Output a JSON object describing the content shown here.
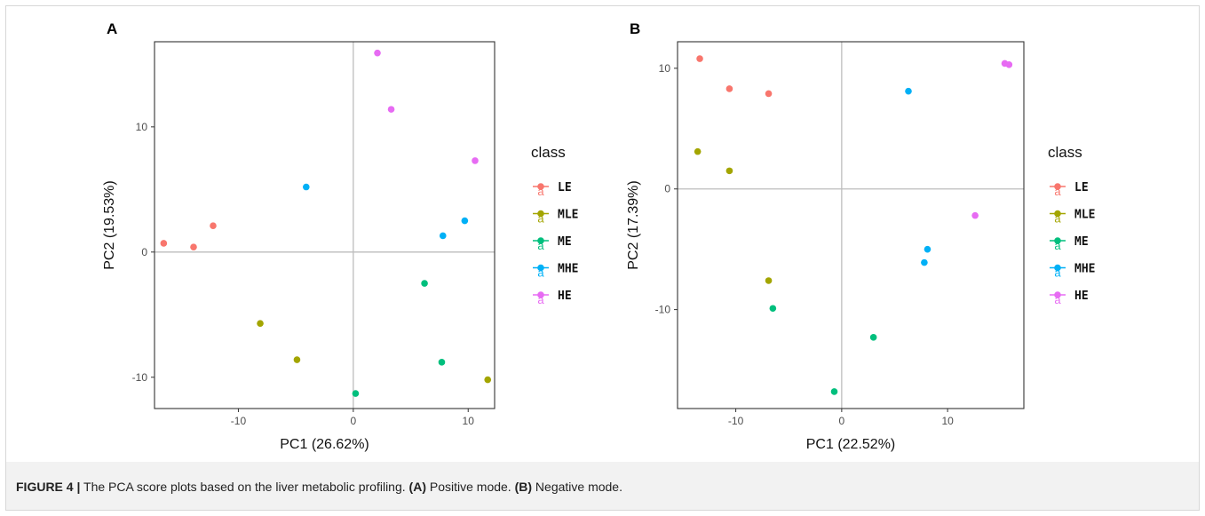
{
  "caption": {
    "label": "FIGURE 4 |",
    "text_before": " The PCA score plots based on the liver metabolic profiling. ",
    "a_label": "(A)",
    "a_text": " Positive mode. ",
    "b_label": "(B)",
    "b_text": " Negative mode."
  },
  "colors": {
    "LE": "#F8766D",
    "MLE": "#A3A500",
    "ME": "#00BF7D",
    "MHE": "#00B0F6",
    "HE": "#E76BF3",
    "zero_line": "#bdbdbd",
    "panel_border": "#333333"
  },
  "chart_data": [
    {
      "type": "scatter",
      "panel_label": "A",
      "xlabel": "PC1 (26.62%)",
      "ylabel": "PC2 (19.53%)",
      "xlim": [
        -17.3,
        12.3
      ],
      "ylim": [
        -12.5,
        16.8
      ],
      "xticks": [
        -10,
        0,
        10
      ],
      "yticks": [
        -10,
        0,
        10
      ],
      "grid": false,
      "zero_lines": true,
      "legend_title": "class",
      "legend_position": "right",
      "series": [
        {
          "name": "LE",
          "points": [
            [
              -16.5,
              0.7
            ],
            [
              -13.9,
              0.4
            ],
            [
              -12.2,
              2.1
            ]
          ]
        },
        {
          "name": "MLE",
          "points": [
            [
              -8.1,
              -5.7
            ],
            [
              -4.9,
              -8.6
            ],
            [
              11.7,
              -10.2
            ]
          ]
        },
        {
          "name": "ME",
          "points": [
            [
              0.2,
              -11.3
            ],
            [
              6.2,
              -2.5
            ],
            [
              7.7,
              -8.8
            ]
          ]
        },
        {
          "name": "MHE",
          "points": [
            [
              -4.1,
              5.2
            ],
            [
              7.8,
              1.3
            ],
            [
              9.7,
              2.5
            ]
          ]
        },
        {
          "name": "HE",
          "points": [
            [
              2.1,
              15.9
            ],
            [
              3.3,
              11.4
            ],
            [
              10.6,
              7.3
            ]
          ]
        }
      ]
    },
    {
      "type": "scatter",
      "panel_label": "B",
      "xlabel": "PC1 (22.52%)",
      "ylabel": "PC2 (17.39%)",
      "xlim": [
        -15.5,
        17.2
      ],
      "ylim": [
        -18.2,
        12.2
      ],
      "xticks": [
        -10,
        0,
        10
      ],
      "yticks": [
        -10,
        0,
        10
      ],
      "grid": false,
      "zero_lines": true,
      "legend_title": "class",
      "legend_position": "right",
      "series": [
        {
          "name": "LE",
          "points": [
            [
              -13.4,
              10.8
            ],
            [
              -10.6,
              8.3
            ],
            [
              -6.9,
              7.9
            ]
          ]
        },
        {
          "name": "MLE",
          "points": [
            [
              -13.6,
              3.1
            ],
            [
              -10.6,
              1.5
            ],
            [
              -6.9,
              -7.6
            ]
          ]
        },
        {
          "name": "ME",
          "points": [
            [
              -6.5,
              -9.9
            ],
            [
              3.0,
              -12.3
            ],
            [
              -0.7,
              -16.8
            ]
          ]
        },
        {
          "name": "MHE",
          "points": [
            [
              6.3,
              8.1
            ],
            [
              8.1,
              -5.0
            ],
            [
              7.8,
              -6.1
            ]
          ]
        },
        {
          "name": "HE",
          "points": [
            [
              15.4,
              10.4
            ],
            [
              15.8,
              10.3
            ],
            [
              12.6,
              -2.2
            ]
          ]
        }
      ]
    }
  ]
}
